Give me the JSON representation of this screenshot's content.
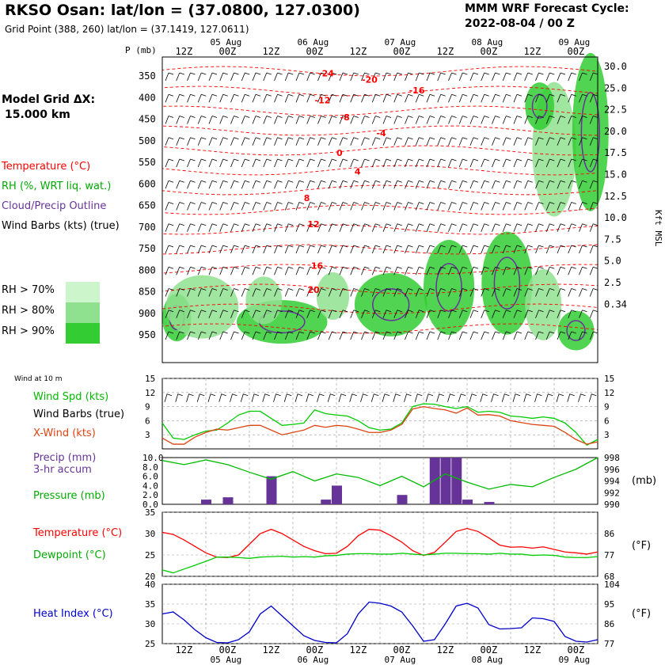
{
  "header": {
    "title": "RKSO Osan:  lat/lon = (37.0800, 127.0300)",
    "subtitle": "Grid Point (388, 260) lat/lon = (37.1419, 127.0611)",
    "cycle_line1": "MMM WRF Forecast Cycle:",
    "cycle_line2": "2022-08-04 / 00  Z",
    "grid_label1": "Model Grid ΔX:",
    "grid_label2": "15.000 km"
  },
  "legend": {
    "temperature": "Temperature (°C)",
    "rh": "RH (%, WRT liq. wat.)",
    "cloud": "Cloud/Precip Outline",
    "barbs": "Wind Barbs (kts) (true)",
    "rh70": "RH > 70%",
    "rh80": "RH > 80%",
    "rh90": "RH > 90%",
    "colors": {
      "rh70": "#ccf5cc",
      "rh80": "#8fe08f",
      "rh90": "#33cc33",
      "temp": "#ff0000",
      "cloud": "#663399",
      "barb": "#000000"
    }
  },
  "chart_data": [
    {
      "type": "heatmap",
      "name": "upper",
      "ylabel_left": "P (mb)",
      "ylabel_right": "Kft MSL",
      "pressure_ticks": [
        "350",
        "400",
        "450",
        "500",
        "550",
        "600",
        "650",
        "700",
        "750",
        "800",
        "850",
        "900",
        "950"
      ],
      "height_ticks": [
        "30.0",
        "25.0",
        "22.5",
        "20.0",
        "17.5",
        "15.0",
        "12.5",
        "10.0",
        "7.5",
        "5.0",
        "2.5",
        "0.34"
      ],
      "time_ticks": [
        "12Z",
        "00Z",
        "12Z",
        "00Z",
        "12Z",
        "00Z",
        "12Z",
        "00Z",
        "12Z",
        "00Z"
      ],
      "date_ticks": [
        "05 Aug",
        "06 Aug",
        "07 Aug",
        "08 Aug",
        "09 Aug"
      ],
      "temp_labels": [
        {
          "t": "-24",
          "hour": 43,
          "p": 351
        },
        {
          "t": "-20",
          "hour": 55,
          "p": 366
        },
        {
          "t": "-16",
          "hour": 68,
          "p": 390
        },
        {
          "t": "-12",
          "hour": 42,
          "p": 413
        },
        {
          "t": "-8",
          "hour": 49,
          "p": 453
        },
        {
          "t": "-4",
          "hour": 59,
          "p": 489
        },
        {
          "t": "0",
          "hour": 48,
          "p": 535
        },
        {
          "t": "4",
          "hour": 53,
          "p": 578
        },
        {
          "t": "8",
          "hour": 39,
          "p": 640
        },
        {
          "t": "12",
          "hour": 40,
          "p": 700
        },
        {
          "t": "16",
          "hour": 41,
          "p": 797
        },
        {
          "t": "20",
          "hour": 40,
          "p": 853
        }
      ],
      "rh_patches": [
        {
          "hour": 4,
          "p": 910,
          "w": 8,
          "h": 60,
          "level": 3
        },
        {
          "hour": 11,
          "p": 885,
          "w": 20,
          "h": 80,
          "level": 2
        },
        {
          "hour": 33,
          "p": 920,
          "w": 25,
          "h": 55,
          "level": 3
        },
        {
          "hour": 28,
          "p": 870,
          "w": 10,
          "h": 60,
          "level": 2
        },
        {
          "hour": 47,
          "p": 860,
          "w": 9,
          "h": 60,
          "level": 2
        },
        {
          "hour": 63,
          "p": 880,
          "w": 20,
          "h": 80,
          "level": 3
        },
        {
          "hour": 79,
          "p": 840,
          "w": 14,
          "h": 120,
          "level": 3
        },
        {
          "hour": 95,
          "p": 830,
          "w": 14,
          "h": 130,
          "level": 3
        },
        {
          "hour": 105,
          "p": 880,
          "w": 10,
          "h": 90,
          "level": 2
        },
        {
          "hour": 108,
          "p": 520,
          "w": 12,
          "h": 170,
          "level": 2
        },
        {
          "hour": 118,
          "p": 480,
          "w": 10,
          "h": 200,
          "level": 3
        },
        {
          "hour": 114,
          "p": 940,
          "w": 10,
          "h": 50,
          "level": 3
        },
        {
          "hour": 104,
          "p": 420,
          "w": 8,
          "h": 60,
          "level": 3
        }
      ]
    },
    {
      "type": "line",
      "name": "wind",
      "ylim": [
        0,
        15
      ],
      "yticks": [
        3,
        6,
        9,
        12,
        15
      ],
      "x": [
        0,
        3,
        6,
        9,
        12,
        15,
        18,
        21,
        24,
        27,
        30,
        33,
        36,
        39,
        42,
        45,
        48,
        51,
        54,
        57,
        60,
        63,
        66,
        69,
        72,
        75,
        78,
        81,
        84,
        87,
        90,
        93,
        96,
        99,
        102,
        105,
        108,
        111,
        114,
        117,
        120
      ],
      "series": [
        {
          "name": "Wind Spd (kts)",
          "color": "#00cc00",
          "values": [
            5.5,
            2.3,
            2.0,
            3.0,
            3.8,
            4.0,
            5.5,
            7.2,
            8.0,
            8.0,
            6.5,
            5.0,
            5.2,
            5.5,
            8.3,
            7.5,
            7.2,
            7.0,
            6.0,
            4.5,
            4.0,
            4.2,
            5.5,
            9.0,
            9.6,
            9.5,
            9.0,
            8.6,
            9.0,
            7.8,
            8.0,
            7.8,
            7.0,
            6.8,
            6.5,
            6.8,
            6.5,
            5.5,
            3.5,
            0.8,
            2.0
          ]
        },
        {
          "name": "X-Wind (kts)",
          "color": "#dd4411",
          "values": [
            2.3,
            1.0,
            1.0,
            2.5,
            3.5,
            4.2,
            4.0,
            4.5,
            5.0,
            5.0,
            4.0,
            3.0,
            3.5,
            4.0,
            5.0,
            4.6,
            5.0,
            4.8,
            4.2,
            3.5,
            3.5,
            4.0,
            5.2,
            8.5,
            9.0,
            8.6,
            8.3,
            7.6,
            8.7,
            7.2,
            7.3,
            7.0,
            6.0,
            5.6,
            5.2,
            5.0,
            4.8,
            3.5,
            2.0,
            1.0,
            1.5
          ]
        }
      ]
    },
    {
      "type": "bar",
      "name": "precip-pressure",
      "ylim": [
        0,
        10
      ],
      "yticks": [
        "0.0",
        "2.0",
        "4.0",
        "6.0",
        "8.0",
        "10.0"
      ],
      "pres_ticks": [
        "990",
        "992",
        "994",
        "996",
        "998"
      ],
      "precip_bars": [
        {
          "hour": 12,
          "v": 1
        },
        {
          "hour": 18,
          "v": 1.5
        },
        {
          "hour": 30,
          "v": 6
        },
        {
          "hour": 45,
          "v": 1
        },
        {
          "hour": 48,
          "v": 4
        },
        {
          "hour": 66,
          "v": 2
        },
        {
          "hour": 75,
          "v": 10
        },
        {
          "hour": 78,
          "v": 10
        },
        {
          "hour": 81,
          "v": 10
        },
        {
          "hour": 84,
          "v": 1
        },
        {
          "hour": 90,
          "v": 0.5
        }
      ],
      "pressure": {
        "x": [
          0,
          6,
          12,
          18,
          24,
          30,
          36,
          42,
          48,
          54,
          60,
          66,
          72,
          78,
          84,
          90,
          96,
          102,
          108,
          114,
          120
        ],
        "values": [
          997.5,
          996.8,
          997.6,
          996.8,
          995.5,
          994.3,
          995.6,
          994.0,
          995.2,
          994.6,
          993.2,
          994.8,
          993.0,
          995.2,
          993.8,
          992.6,
          993.4,
          993.0,
          994.6,
          996.0,
          998.0
        ]
      }
    },
    {
      "type": "line",
      "name": "temp-dewpoint",
      "ylim": [
        20,
        35
      ],
      "yticks": [
        "20",
        "25",
        "30",
        "35"
      ],
      "f_ticks": [
        "68",
        "77",
        "86"
      ],
      "x": [
        0,
        3,
        6,
        9,
        12,
        15,
        18,
        21,
        24,
        27,
        30,
        33,
        36,
        39,
        42,
        45,
        48,
        51,
        54,
        57,
        60,
        63,
        66,
        69,
        72,
        75,
        78,
        81,
        84,
        87,
        90,
        93,
        96,
        99,
        102,
        105,
        108,
        111,
        114,
        117,
        120
      ],
      "series": [
        {
          "name": "Temperature (°C)",
          "color": "#ff0000",
          "values": [
            30.3,
            29.8,
            28.5,
            27.0,
            25.5,
            24.5,
            24.4,
            25.0,
            27.5,
            30.0,
            31.0,
            30.0,
            28.5,
            27.0,
            26.0,
            25.3,
            25.4,
            27.0,
            29.5,
            31.0,
            30.8,
            29.5,
            28.0,
            26.0,
            24.9,
            25.6,
            28.0,
            30.5,
            31.2,
            30.5,
            29.0,
            27.3,
            26.8,
            26.9,
            26.6,
            26.9,
            26.3,
            25.7,
            25.5,
            25.2,
            25.7
          ]
        },
        {
          "name": "Dewpoint (°C)",
          "color": "#00cc00",
          "values": [
            21.5,
            20.8,
            21.7,
            22.6,
            23.5,
            24.5,
            24.5,
            24.4,
            24.2,
            24.5,
            24.6,
            24.7,
            24.5,
            24.6,
            24.5,
            24.8,
            24.9,
            25.2,
            25.3,
            25.3,
            25.2,
            25.2,
            25.4,
            25.2,
            25.0,
            25.2,
            25.4,
            25.4,
            25.3,
            25.3,
            25.2,
            25.4,
            25.2,
            25.2,
            24.9,
            25.0,
            24.9,
            24.5,
            24.4,
            24.4,
            24.6
          ]
        }
      ]
    },
    {
      "type": "line",
      "name": "heat-index",
      "ylim": [
        25,
        40
      ],
      "yticks": [
        "25",
        "30",
        "35",
        "40"
      ],
      "f_ticks": [
        "77",
        "86",
        "95",
        "104"
      ],
      "x": [
        0,
        3,
        6,
        9,
        12,
        15,
        18,
        21,
        24,
        27,
        30,
        33,
        36,
        39,
        42,
        45,
        48,
        51,
        54,
        57,
        60,
        63,
        66,
        69,
        72,
        75,
        78,
        81,
        84,
        87,
        90,
        93,
        96,
        99,
        102,
        105,
        108,
        111,
        114,
        117,
        120
      ],
      "series": [
        {
          "name": "Heat Index (°C)",
          "color": "#0000cc",
          "values": [
            32.5,
            33.0,
            31.0,
            28.5,
            26.5,
            25.3,
            25.2,
            26.0,
            28.0,
            32.5,
            34.5,
            32.0,
            29.5,
            27.0,
            25.8,
            25.3,
            25.2,
            27.5,
            32.5,
            35.5,
            35.2,
            34.5,
            33.0,
            29.5,
            25.6,
            26.0,
            30.0,
            34.5,
            35.2,
            34.0,
            29.8,
            28.7,
            28.8,
            29.0,
            31.5,
            31.3,
            30.6,
            26.8,
            25.6,
            25.4,
            26.0
          ]
        }
      ]
    }
  ],
  "lower_labels": {
    "wind_at_10m": "Wind at 10 m",
    "wind_spd": "Wind Spd (kts)",
    "wind_barbs": "Wind Barbs (true)",
    "xwind": "X-Wind (kts)",
    "precip1": "Precip (mm)",
    "precip2": "3-hr accum",
    "pressure": "Pressure (mb)",
    "mb_unit": "(mb)",
    "temp": "Temperature (°C)",
    "dew": "Dewpoint (°C)",
    "f_unit1": "(°F)",
    "heat": "Heat Index (°C)",
    "f_unit2": "(°F)"
  }
}
